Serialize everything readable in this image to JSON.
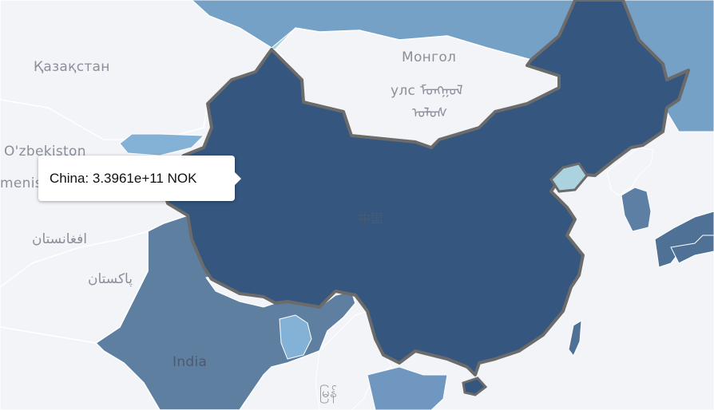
{
  "tooltip": {
    "text": "China: 3.3961e+11 NOK"
  },
  "map_labels": {
    "kazakhstan": "Қазақстан",
    "mongolia_1": "Монгол",
    "mongolia_2": "улс ᠮᠣᠩᠭᠣᠯ",
    "mongolia_3": "ᠤᠯᠤᠰ",
    "uzbekistan": "O'zbekiston",
    "turkmenistan": "menis",
    "afghanistan": "افغانستان",
    "pakistan": "پاکستان",
    "china": "中国",
    "india": "India",
    "myanmar": "မြန်"
  },
  "colors": {
    "sea": "#aad3df",
    "no_data": "#f2f4f8",
    "china": "#34567f",
    "india": "#5f7fa0",
    "russia": "#75a1c6",
    "japan": "#4f7196",
    "korea": "#5c7fa3",
    "border_highlight": "#6b6b6b"
  }
}
